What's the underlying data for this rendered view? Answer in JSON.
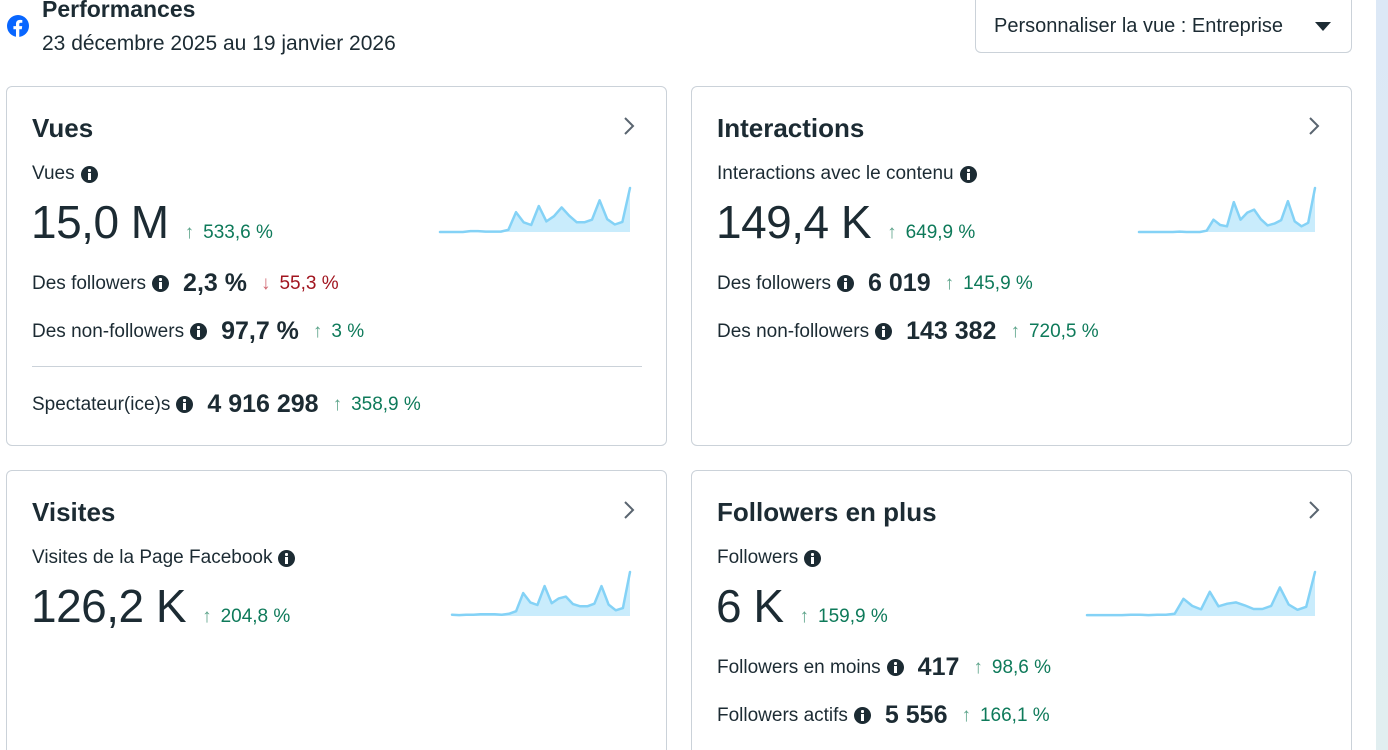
{
  "header": {
    "title": "Performances",
    "date_range": "23 décembre 2025 au 19 janvier 2026",
    "view_select": {
      "label": "Personnaliser la vue : Entreprise"
    }
  },
  "colors": {
    "accent": "#0866ff",
    "text": "#1c2b33",
    "positive": "#0e7a5a",
    "negative": "#a1151f",
    "sparkline_stroke": "#84d2f6",
    "sparkline_fill": "#c9ecfc"
  },
  "cards": {
    "vues": {
      "title": "Vues",
      "metric_label": "Vues",
      "value": "15,0 M",
      "delta": "533,6 %",
      "delta_direction": "up",
      "rows": [
        {
          "label": "Des followers",
          "value": "2,3 %",
          "delta": "55,3 %",
          "direction": "down"
        },
        {
          "label": "Des non-followers",
          "value": "97,7 %",
          "delta": "3 %",
          "direction": "up"
        }
      ],
      "footer": {
        "label": "Spectateur(ice)s",
        "value": "4 916 298",
        "delta": "358,9 %",
        "direction": "up"
      },
      "sparkline": [
        0,
        0,
        0,
        0,
        0.2,
        0.2,
        0.1,
        0.1,
        0.1,
        0.5,
        4.5,
        2.2,
        1.6,
        5.9,
        2.4,
        3.6,
        5.6,
        3.7,
        2.2,
        2.2,
        2.8,
        7.2,
        2.9,
        1.7,
        2.3,
        10
      ]
    },
    "interactions": {
      "title": "Interactions",
      "metric_label": "Interactions avec le contenu",
      "value": "149,4 K",
      "delta": "649,9 %",
      "delta_direction": "up",
      "rows": [
        {
          "label": "Des followers",
          "value": "6 019",
          "delta": "145,9 %",
          "direction": "up"
        },
        {
          "label": "Des non-followers",
          "value": "143 382",
          "delta": "720,5 %",
          "direction": "up"
        }
      ],
      "sparkline": [
        0,
        0,
        0,
        0,
        0,
        0,
        0.1,
        0,
        0,
        0,
        0.3,
        2.8,
        1.6,
        1.3,
        6.8,
        2.8,
        4.4,
        5.1,
        2.9,
        1.5,
        1.9,
        2.7,
        7.0,
        2.4,
        1.3,
        2.1,
        10
      ]
    },
    "visites": {
      "title": "Visites",
      "metric_label": "Visites de la Page Facebook",
      "value": "126,2 K",
      "delta": "204,8 %",
      "delta_direction": "up",
      "sparkline": [
        0.3,
        0.2,
        0.3,
        0.3,
        0.4,
        0.4,
        0.4,
        0.3,
        0.5,
        1.1,
        5.2,
        3.1,
        2.5,
        6.8,
        2.9,
        4.0,
        4.4,
        2.7,
        2.2,
        2.2,
        2.8,
        6.8,
        2.6,
        1.3,
        1.8,
        10
      ]
    },
    "followers": {
      "title": "Followers en plus",
      "metric_label": "Followers",
      "value": "6 K",
      "delta": "159,9 %",
      "delta_direction": "up",
      "rows": [
        {
          "label": "Followers en moins",
          "value": "417",
          "delta": "98,6 %",
          "direction": "up"
        },
        {
          "label": "Followers actifs",
          "value": "5 556",
          "delta": "166,1 %",
          "direction": "up"
        }
      ],
      "sparkline": [
        0.2,
        0.2,
        0.2,
        0.2,
        0.2,
        0.3,
        0.3,
        0.2,
        0.3,
        0.3,
        0.5,
        3.9,
        2.3,
        1.5,
        5.5,
        2.2,
        2.8,
        3.1,
        2.4,
        1.6,
        1.6,
        2.3,
        6.5,
        2.6,
        1.4,
        2.1,
        10
      ]
    }
  }
}
